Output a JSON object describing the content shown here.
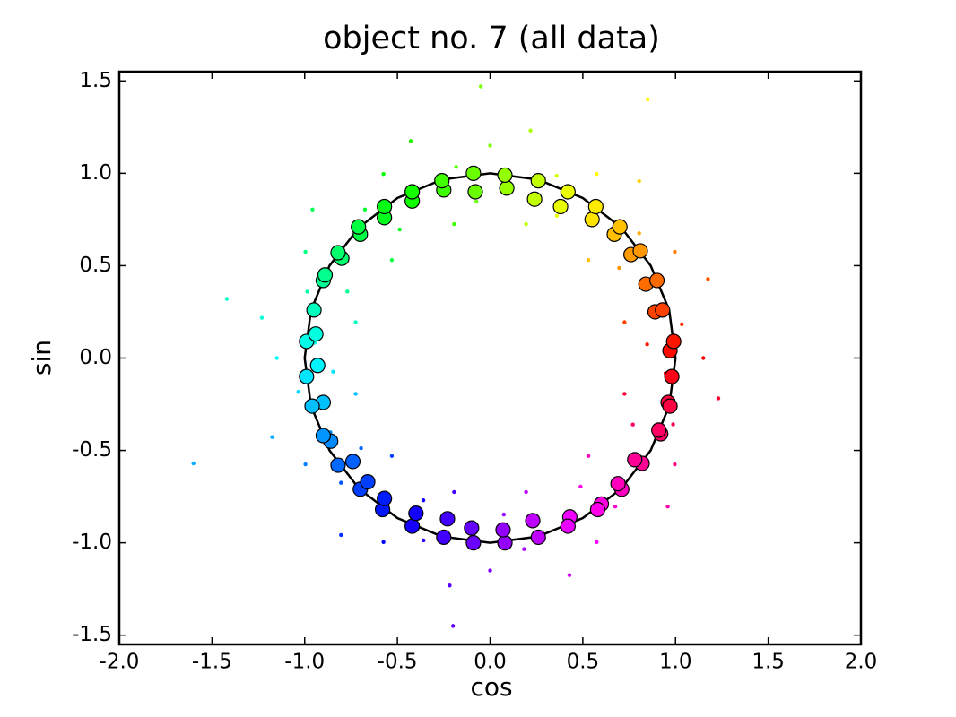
{
  "chart_data": {
    "type": "scatter",
    "title": "object no. 7 (all data)",
    "x_label": "cos",
    "y_label": "sin",
    "xlim": [
      -2,
      2
    ],
    "ylim": [
      -1.55,
      1.55
    ],
    "xticks": [
      {
        "value": -2,
        "label": "-2.0"
      },
      {
        "value": -1.5,
        "label": "-1.5"
      },
      {
        "value": -1,
        "label": "-1.0"
      },
      {
        "value": -0.5,
        "label": "-0.5"
      },
      {
        "value": 0,
        "label": "0.0"
      },
      {
        "value": 0.5,
        "label": "0.5"
      },
      {
        "value": 1,
        "label": "1.0"
      },
      {
        "value": 1.5,
        "label": "1.5"
      },
      {
        "value": 2,
        "label": "2.0"
      }
    ],
    "yticks": [
      {
        "value": -1.5,
        "label": "-1.5"
      },
      {
        "value": -1,
        "label": "-1.0"
      },
      {
        "value": -0.5,
        "label": "-0.5"
      },
      {
        "value": 0,
        "label": "0.0"
      },
      {
        "value": 0.5,
        "label": "0.5"
      },
      {
        "value": 1,
        "label": "1.0"
      },
      {
        "value": 1.5,
        "label": "1.5"
      }
    ],
    "grid": false,
    "colormap": "hsv",
    "series": [
      {
        "kind": "points",
        "x": [
          1.15,
          0.847,
          1.034,
          0.725,
          1.175,
          0.861,
          0.996,
          0.696,
          0.804,
          0.53,
          0.804,
          0.545,
          0.575,
          0.36,
          0.359,
          0.194,
          0.218,
          0.083,
          0,
          -0.074,
          -0.183,
          -0.194,
          -0.428,
          -0.402,
          -0.575,
          -0.488,
          -0.675,
          -0.53,
          -0.958,
          -0.778,
          -0.996,
          -0.77,
          -0.987,
          -0.725,
          -1.231,
          -0.946,
          -1.15,
          -0.847,
          -1.034,
          -0.725,
          -1.175,
          -0.861,
          -0.996,
          -0.696,
          -0.804,
          -0.53,
          -0.804,
          -0.545,
          -0.575,
          -0.36,
          -0.359,
          -0.194,
          -0.218,
          -0.083,
          0,
          0.074,
          0.183,
          0.194,
          0.428,
          0.402,
          0.575,
          0.488,
          0.675,
          0.53,
          0.958,
          0.778,
          0.996,
          0.77,
          0.987,
          0.725,
          1.231,
          0.946,
          -1.6,
          -1.42,
          0.85,
          -0.05,
          -0.2
        ],
        "y": [
          0,
          0.074,
          0.183,
          0.194,
          0.428,
          0.402,
          0.575,
          0.488,
          0.675,
          0.53,
          0.958,
          0.778,
          0.996,
          0.77,
          0.987,
          0.725,
          1.231,
          0.946,
          1.15,
          0.847,
          1.034,
          0.725,
          1.175,
          0.861,
          0.996,
          0.696,
          0.804,
          0.53,
          0.804,
          0.545,
          0.575,
          0.36,
          0.359,
          0.194,
          0.218,
          0.083,
          0,
          -0.074,
          -0.183,
          -0.194,
          -0.428,
          -0.402,
          -0.575,
          -0.488,
          -0.675,
          -0.53,
          -0.958,
          -0.778,
          -0.996,
          -0.77,
          -0.987,
          -0.725,
          -1.231,
          -0.946,
          -1.15,
          -0.847,
          -1.034,
          -0.725,
          -1.175,
          -0.861,
          -0.996,
          -0.696,
          -0.804,
          -0.53,
          -0.804,
          -0.545,
          -0.575,
          -0.36,
          -0.359,
          -0.194,
          -0.218,
          -0.083,
          -0.57,
          0.32,
          1.4,
          1.47,
          -1.45
        ]
      },
      {
        "kind": "line",
        "color": "#000000",
        "x": [
          1,
          0.966,
          0.866,
          0.707,
          0.5,
          0.259,
          0,
          -0.259,
          -0.5,
          -0.707,
          -0.866,
          -0.966,
          -1,
          -0.966,
          -0.866,
          -0.707,
          -0.5,
          -0.259,
          0,
          0.259,
          0.5,
          0.707,
          0.866,
          0.966,
          1
        ],
        "y": [
          0,
          0.259,
          0.5,
          0.707,
          0.866,
          0.966,
          1,
          0.966,
          0.866,
          0.707,
          0.5,
          0.259,
          0,
          -0.259,
          -0.5,
          -0.707,
          -0.866,
          -0.966,
          -1,
          -0.966,
          -0.866,
          -0.707,
          -0.5,
          -0.259,
          0
        ]
      },
      {
        "kind": "markers",
        "x": [
          0.97,
          0.99,
          0.98,
          0.96,
          0.97,
          0.92,
          0.91,
          0.82,
          0.78,
          0.71,
          0.69,
          0.6,
          0.58,
          0.43,
          0.42,
          0.26,
          0.23,
          0.08,
          0.07,
          -0.09,
          -0.1,
          -0.25,
          -0.23,
          -0.42,
          -0.4,
          -0.58,
          -0.57,
          -0.7,
          -0.66,
          -0.74,
          -0.82,
          -0.86,
          -0.9,
          -0.9,
          -0.96,
          -0.99,
          -0.93,
          -0.99,
          -0.94,
          -0.95,
          -0.9,
          -0.89,
          -0.8,
          -0.82,
          -0.7,
          -0.71,
          -0.57,
          -0.57,
          -0.42,
          -0.42,
          -0.25,
          -0.26,
          -0.08,
          -0.09,
          0.09,
          0.08,
          0.24,
          0.26,
          0.38,
          0.42,
          0.55,
          0.57,
          0.67,
          0.7,
          0.76,
          0.81,
          0.84,
          0.9,
          0.89,
          0.93
        ],
        "y": [
          0.04,
          0.09,
          -0.1,
          -0.24,
          -0.26,
          -0.41,
          -0.39,
          -0.57,
          -0.55,
          -0.71,
          -0.68,
          -0.79,
          -0.82,
          -0.86,
          -0.91,
          -0.97,
          -0.88,
          -1.0,
          -0.93,
          -1.0,
          -0.92,
          -0.97,
          -0.87,
          -0.91,
          -0.84,
          -0.82,
          -0.76,
          -0.71,
          -0.67,
          -0.56,
          -0.58,
          -0.45,
          -0.42,
          -0.24,
          -0.26,
          -0.1,
          -0.04,
          0.09,
          0.13,
          0.26,
          0.42,
          0.45,
          0.54,
          0.57,
          0.67,
          0.71,
          0.76,
          0.82,
          0.85,
          0.9,
          0.91,
          0.96,
          0.9,
          1.0,
          0.92,
          0.99,
          0.86,
          0.96,
          0.82,
          0.9,
          0.75,
          0.82,
          0.67,
          0.71,
          0.56,
          0.58,
          0.4,
          0.42,
          0.25,
          0.26
        ]
      }
    ]
  }
}
